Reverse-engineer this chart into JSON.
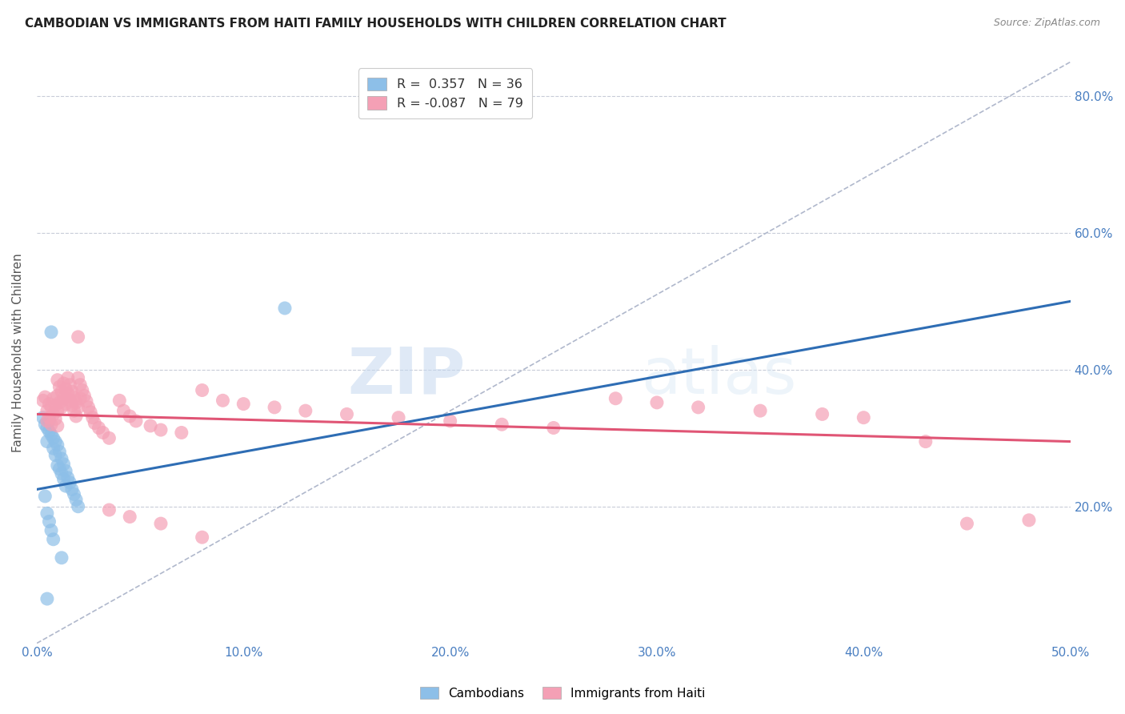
{
  "title": "CAMBODIAN VS IMMIGRANTS FROM HAITI FAMILY HOUSEHOLDS WITH CHILDREN CORRELATION CHART",
  "source": "Source: ZipAtlas.com",
  "ylabel": "Family Households with Children",
  "xlim": [
    0.0,
    0.5
  ],
  "ylim": [
    0.0,
    0.85
  ],
  "x_ticks": [
    0.0,
    0.1,
    0.2,
    0.3,
    0.4,
    0.5
  ],
  "x_tick_labels": [
    "0.0%",
    "10.0%",
    "20.0%",
    "30.0%",
    "40.0%",
    "50.0%"
  ],
  "y_ticks": [
    0.0,
    0.2,
    0.4,
    0.6,
    0.8
  ],
  "y_tick_labels": [
    "",
    "20.0%",
    "40.0%",
    "60.0%",
    "80.0%"
  ],
  "cambodian_color": "#8dbfe8",
  "haiti_color": "#f4a0b5",
  "cambodian_R": 0.357,
  "cambodian_N": 36,
  "haiti_R": -0.087,
  "haiti_N": 79,
  "legend_label_cambodian": "Cambodians",
  "legend_label_haiti": "Immigrants from Haiti",
  "watermark_zip": "ZIP",
  "watermark_atlas": "atlas",
  "cam_line_color": "#2e6db4",
  "hai_line_color": "#e05575",
  "diag_line_color": "#b0b8cc",
  "cambodian_scatter": [
    [
      0.003,
      0.33
    ],
    [
      0.004,
      0.32
    ],
    [
      0.005,
      0.315
    ],
    [
      0.005,
      0.295
    ],
    [
      0.006,
      0.325
    ],
    [
      0.006,
      0.31
    ],
    [
      0.007,
      0.455
    ],
    [
      0.007,
      0.305
    ],
    [
      0.008,
      0.3
    ],
    [
      0.008,
      0.285
    ],
    [
      0.009,
      0.295
    ],
    [
      0.009,
      0.275
    ],
    [
      0.01,
      0.29
    ],
    [
      0.01,
      0.26
    ],
    [
      0.011,
      0.28
    ],
    [
      0.011,
      0.255
    ],
    [
      0.012,
      0.27
    ],
    [
      0.012,
      0.248
    ],
    [
      0.013,
      0.262
    ],
    [
      0.013,
      0.24
    ],
    [
      0.014,
      0.252
    ],
    [
      0.014,
      0.23
    ],
    [
      0.015,
      0.242
    ],
    [
      0.016,
      0.235
    ],
    [
      0.017,
      0.225
    ],
    [
      0.018,
      0.218
    ],
    [
      0.019,
      0.21
    ],
    [
      0.02,
      0.2
    ],
    [
      0.004,
      0.215
    ],
    [
      0.005,
      0.19
    ],
    [
      0.006,
      0.178
    ],
    [
      0.007,
      0.165
    ],
    [
      0.008,
      0.152
    ],
    [
      0.012,
      0.125
    ],
    [
      0.005,
      0.065
    ],
    [
      0.12,
      0.49
    ]
  ],
  "haiti_scatter": [
    [
      0.003,
      0.355
    ],
    [
      0.004,
      0.36
    ],
    [
      0.005,
      0.34
    ],
    [
      0.005,
      0.325
    ],
    [
      0.006,
      0.35
    ],
    [
      0.006,
      0.33
    ],
    [
      0.007,
      0.345
    ],
    [
      0.007,
      0.32
    ],
    [
      0.008,
      0.358
    ],
    [
      0.008,
      0.335
    ],
    [
      0.009,
      0.348
    ],
    [
      0.009,
      0.328
    ],
    [
      0.01,
      0.385
    ],
    [
      0.01,
      0.362
    ],
    [
      0.01,
      0.34
    ],
    [
      0.01,
      0.318
    ],
    [
      0.011,
      0.375
    ],
    [
      0.011,
      0.352
    ],
    [
      0.012,
      0.368
    ],
    [
      0.012,
      0.345
    ],
    [
      0.013,
      0.38
    ],
    [
      0.013,
      0.358
    ],
    [
      0.014,
      0.372
    ],
    [
      0.014,
      0.35
    ],
    [
      0.015,
      0.388
    ],
    [
      0.015,
      0.365
    ],
    [
      0.016,
      0.378
    ],
    [
      0.016,
      0.356
    ],
    [
      0.017,
      0.368
    ],
    [
      0.017,
      0.348
    ],
    [
      0.018,
      0.36
    ],
    [
      0.018,
      0.34
    ],
    [
      0.019,
      0.352
    ],
    [
      0.019,
      0.332
    ],
    [
      0.02,
      0.448
    ],
    [
      0.02,
      0.388
    ],
    [
      0.02,
      0.345
    ],
    [
      0.021,
      0.378
    ],
    [
      0.021,
      0.358
    ],
    [
      0.022,
      0.37
    ],
    [
      0.023,
      0.362
    ],
    [
      0.024,
      0.354
    ],
    [
      0.025,
      0.345
    ],
    [
      0.026,
      0.338
    ],
    [
      0.027,
      0.33
    ],
    [
      0.028,
      0.322
    ],
    [
      0.03,
      0.315
    ],
    [
      0.032,
      0.308
    ],
    [
      0.035,
      0.3
    ],
    [
      0.04,
      0.355
    ],
    [
      0.042,
      0.34
    ],
    [
      0.045,
      0.332
    ],
    [
      0.048,
      0.325
    ],
    [
      0.055,
      0.318
    ],
    [
      0.06,
      0.312
    ],
    [
      0.07,
      0.308
    ],
    [
      0.08,
      0.37
    ],
    [
      0.09,
      0.355
    ],
    [
      0.1,
      0.35
    ],
    [
      0.115,
      0.345
    ],
    [
      0.13,
      0.34
    ],
    [
      0.15,
      0.335
    ],
    [
      0.175,
      0.33
    ],
    [
      0.2,
      0.325
    ],
    [
      0.225,
      0.32
    ],
    [
      0.25,
      0.315
    ],
    [
      0.28,
      0.358
    ],
    [
      0.3,
      0.352
    ],
    [
      0.32,
      0.345
    ],
    [
      0.35,
      0.34
    ],
    [
      0.38,
      0.335
    ],
    [
      0.4,
      0.33
    ],
    [
      0.43,
      0.295
    ],
    [
      0.45,
      0.175
    ],
    [
      0.48,
      0.18
    ],
    [
      0.035,
      0.195
    ],
    [
      0.045,
      0.185
    ],
    [
      0.06,
      0.175
    ],
    [
      0.08,
      0.155
    ]
  ]
}
